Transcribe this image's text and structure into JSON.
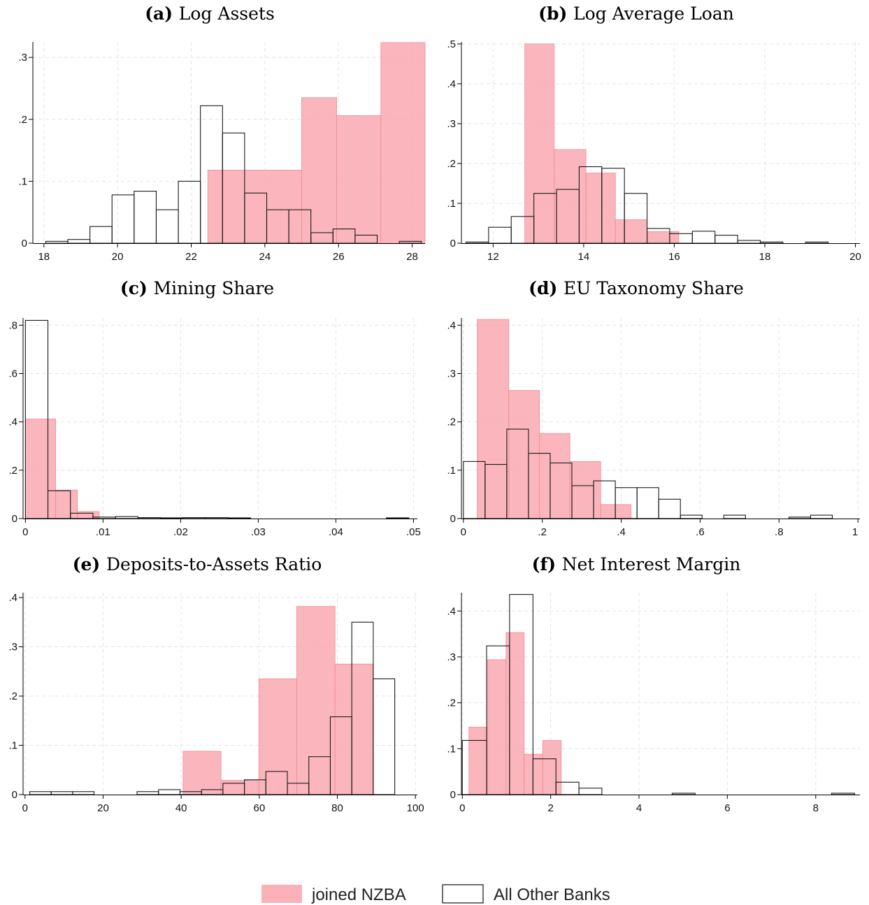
{
  "legend": {
    "items": [
      {
        "label": "joined NZBA",
        "color": "#f9a9b0",
        "style": "filled"
      },
      {
        "label": "All Other Banks",
        "color": "#1a1a1a",
        "style": "outline"
      }
    ]
  },
  "chart_data": [
    {
      "id": "a",
      "type": "histogram",
      "title_prefix": "(a)",
      "title": "Log Assets",
      "xlim": [
        17.7,
        28.35
      ],
      "ylim": [
        0,
        0.325
      ],
      "xticks": [
        18,
        20,
        22,
        24,
        26,
        28
      ],
      "xtick_labels": [
        "18",
        "20",
        "22",
        "24",
        "26",
        "28"
      ],
      "yticks": [
        0,
        0.1,
        0.2,
        0.3
      ],
      "ytick_labels": [
        "0",
        ".1",
        ".2",
        ".3"
      ],
      "series": [
        {
          "name": "joined NZBA",
          "bins": [
            {
              "x0": 22.45,
              "x1": 25.0,
              "y": 0.118
            },
            {
              "x0": 25.0,
              "x1": 25.95,
              "y": 0.235
            },
            {
              "x0": 25.95,
              "x1": 27.15,
              "y": 0.206
            },
            {
              "x0": 27.15,
              "x1": 28.35,
              "y": 0.324
            }
          ]
        },
        {
          "name": "All Other Banks",
          "bins": [
            {
              "x0": 18.05,
              "x1": 18.65,
              "y": 0.003
            },
            {
              "x0": 18.65,
              "x1": 19.25,
              "y": 0.006
            },
            {
              "x0": 19.25,
              "x1": 19.85,
              "y": 0.027
            },
            {
              "x0": 19.85,
              "x1": 20.45,
              "y": 0.078
            },
            {
              "x0": 20.45,
              "x1": 21.05,
              "y": 0.084
            },
            {
              "x0": 21.05,
              "x1": 21.65,
              "y": 0.054
            },
            {
              "x0": 21.65,
              "x1": 22.25,
              "y": 0.1
            },
            {
              "x0": 22.25,
              "x1": 22.85,
              "y": 0.222
            },
            {
              "x0": 22.85,
              "x1": 23.45,
              "y": 0.178
            },
            {
              "x0": 23.45,
              "x1": 24.05,
              "y": 0.081
            },
            {
              "x0": 24.05,
              "x1": 24.65,
              "y": 0.054
            },
            {
              "x0": 24.65,
              "x1": 25.25,
              "y": 0.054
            },
            {
              "x0": 25.25,
              "x1": 25.85,
              "y": 0.017
            },
            {
              "x0": 25.85,
              "x1": 26.45,
              "y": 0.023
            },
            {
              "x0": 26.45,
              "x1": 27.05,
              "y": 0.013
            },
            {
              "x0": 27.65,
              "x1": 28.25,
              "y": 0.003
            }
          ]
        }
      ]
    },
    {
      "id": "b",
      "type": "histogram",
      "title_prefix": "(b)",
      "title": "Log Average Loan",
      "xlim": [
        11.3,
        20.1
      ],
      "ylim": [
        0,
        0.505
      ],
      "xticks": [
        12,
        14,
        16,
        18,
        20
      ],
      "xtick_labels": [
        "12",
        "14",
        "16",
        "18",
        "20"
      ],
      "yticks": [
        0,
        0.1,
        0.2,
        0.3,
        0.4,
        0.5
      ],
      "ytick_labels": [
        "0",
        ".1",
        ".2",
        ".3",
        ".4",
        ".5"
      ],
      "series": [
        {
          "name": "joined NZBA",
          "bins": [
            {
              "x0": 12.7,
              "x1": 13.35,
              "y": 0.5
            },
            {
              "x0": 13.35,
              "x1": 14.05,
              "y": 0.235
            },
            {
              "x0": 14.05,
              "x1": 14.7,
              "y": 0.176
            },
            {
              "x0": 14.7,
              "x1": 15.4,
              "y": 0.059
            },
            {
              "x0": 15.4,
              "x1": 16.1,
              "y": 0.029
            }
          ]
        },
        {
          "name": "All Other Banks",
          "bins": [
            {
              "x0": 11.4,
              "x1": 11.9,
              "y": 0.003
            },
            {
              "x0": 11.9,
              "x1": 12.4,
              "y": 0.04
            },
            {
              "x0": 12.4,
              "x1": 12.9,
              "y": 0.067
            },
            {
              "x0": 12.9,
              "x1": 13.4,
              "y": 0.125
            },
            {
              "x0": 13.4,
              "x1": 13.9,
              "y": 0.135
            },
            {
              "x0": 13.9,
              "x1": 14.4,
              "y": 0.192
            },
            {
              "x0": 14.4,
              "x1": 14.9,
              "y": 0.188
            },
            {
              "x0": 14.9,
              "x1": 15.4,
              "y": 0.125
            },
            {
              "x0": 15.4,
              "x1": 15.9,
              "y": 0.037
            },
            {
              "x0": 15.9,
              "x1": 16.4,
              "y": 0.024
            },
            {
              "x0": 16.4,
              "x1": 16.9,
              "y": 0.03
            },
            {
              "x0": 16.9,
              "x1": 17.4,
              "y": 0.02
            },
            {
              "x0": 17.4,
              "x1": 17.9,
              "y": 0.007
            },
            {
              "x0": 17.9,
              "x1": 18.4,
              "y": 0.003
            },
            {
              "x0": 18.9,
              "x1": 19.4,
              "y": 0.003
            }
          ]
        }
      ]
    },
    {
      "id": "c",
      "type": "histogram",
      "title_prefix": "(c)",
      "title": "Mining Share",
      "xlim": [
        -0.0003,
        0.0505
      ],
      "ylim": [
        0,
        0.83
      ],
      "xticks": [
        0,
        0.01,
        0.02,
        0.03,
        0.04,
        0.05
      ],
      "xtick_labels": [
        "0",
        ".01",
        ".02",
        ".03",
        ".04",
        ".05"
      ],
      "yticks": [
        0,
        0.2,
        0.4,
        0.6,
        0.8
      ],
      "ytick_labels": [
        "0",
        ".2",
        ".4",
        ".6",
        ".8"
      ],
      "series": [
        {
          "name": "joined NZBA",
          "bins": [
            {
              "x0": 0.0,
              "x1": 0.0039,
              "y": 0.412
            },
            {
              "x0": 0.0039,
              "x1": 0.0067,
              "y": 0.118
            },
            {
              "x0": 0.0067,
              "x1": 0.0095,
              "y": 0.029
            }
          ]
        },
        {
          "name": "All Other Banks",
          "bins": [
            {
              "x0": 0.0,
              "x1": 0.0029,
              "y": 0.82
            },
            {
              "x0": 0.0029,
              "x1": 0.0058,
              "y": 0.115
            },
            {
              "x0": 0.0058,
              "x1": 0.0087,
              "y": 0.022
            },
            {
              "x0": 0.0087,
              "x1": 0.0116,
              "y": 0.006
            },
            {
              "x0": 0.0116,
              "x1": 0.0145,
              "y": 0.008
            },
            {
              "x0": 0.0145,
              "x1": 0.0174,
              "y": 0.004
            },
            {
              "x0": 0.0174,
              "x1": 0.0203,
              "y": 0.003
            },
            {
              "x0": 0.0203,
              "x1": 0.0232,
              "y": 0.004
            },
            {
              "x0": 0.0232,
              "x1": 0.0261,
              "y": 0.004
            },
            {
              "x0": 0.0261,
              "x1": 0.029,
              "y": 0.002
            },
            {
              "x0": 0.0465,
              "x1": 0.0494,
              "y": 0.003
            }
          ]
        }
      ]
    },
    {
      "id": "d",
      "type": "histogram",
      "title_prefix": "(d)",
      "title": "EU Taxonomy Share",
      "xlim": [
        -0.005,
        1.005
      ],
      "ylim": [
        0,
        0.415
      ],
      "xticks": [
        0,
        0.2,
        0.4,
        0.6,
        0.8,
        1
      ],
      "xtick_labels": [
        "0",
        ".2",
        ".4",
        ".6",
        ".8",
        "1"
      ],
      "yticks": [
        0,
        0.1,
        0.2,
        0.3,
        0.4
      ],
      "ytick_labels": [
        "0",
        ".1",
        ".2",
        ".3",
        ".4"
      ],
      "series": [
        {
          "name": "joined NZBA",
          "bins": [
            {
              "x0": 0.035,
              "x1": 0.115,
              "y": 0.412
            },
            {
              "x0": 0.115,
              "x1": 0.193,
              "y": 0.265
            },
            {
              "x0": 0.193,
              "x1": 0.27,
              "y": 0.176
            },
            {
              "x0": 0.27,
              "x1": 0.348,
              "y": 0.118
            },
            {
              "x0": 0.348,
              "x1": 0.425,
              "y": 0.029
            }
          ]
        },
        {
          "name": "All Other Banks",
          "bins": [
            {
              "x0": 0.0,
              "x1": 0.055,
              "y": 0.118
            },
            {
              "x0": 0.055,
              "x1": 0.11,
              "y": 0.112
            },
            {
              "x0": 0.11,
              "x1": 0.165,
              "y": 0.185
            },
            {
              "x0": 0.165,
              "x1": 0.22,
              "y": 0.135
            },
            {
              "x0": 0.22,
              "x1": 0.275,
              "y": 0.115
            },
            {
              "x0": 0.275,
              "x1": 0.33,
              "y": 0.068
            },
            {
              "x0": 0.33,
              "x1": 0.385,
              "y": 0.078
            },
            {
              "x0": 0.385,
              "x1": 0.44,
              "y": 0.064
            },
            {
              "x0": 0.44,
              "x1": 0.495,
              "y": 0.064
            },
            {
              "x0": 0.495,
              "x1": 0.55,
              "y": 0.04
            },
            {
              "x0": 0.55,
              "x1": 0.605,
              "y": 0.007
            },
            {
              "x0": 0.66,
              "x1": 0.715,
              "y": 0.007
            },
            {
              "x0": 0.825,
              "x1": 0.88,
              "y": 0.003
            },
            {
              "x0": 0.88,
              "x1": 0.935,
              "y": 0.007
            }
          ]
        }
      ]
    },
    {
      "id": "e",
      "type": "histogram",
      "title_prefix": "(e)",
      "title": "Deposits-to-Assets Ratio",
      "xlim": [
        -0.5,
        100.5
      ],
      "ylim": [
        0,
        0.41
      ],
      "xticks": [
        0,
        20,
        40,
        60,
        80,
        100
      ],
      "xtick_labels": [
        "0",
        "20",
        "40",
        "60",
        "80",
        "100"
      ],
      "yticks": [
        0,
        0.1,
        0.2,
        0.3,
        0.4
      ],
      "ytick_labels": [
        "0",
        ".1",
        ".2",
        ".3",
        ".4"
      ],
      "series": [
        {
          "name": "joined NZBA",
          "bins": [
            {
              "x0": 40.5,
              "x1": 50.2,
              "y": 0.088
            },
            {
              "x0": 50.2,
              "x1": 59.9,
              "y": 0.029
            },
            {
              "x0": 59.9,
              "x1": 69.6,
              "y": 0.235
            },
            {
              "x0": 69.6,
              "x1": 79.4,
              "y": 0.382
            },
            {
              "x0": 79.4,
              "x1": 89.1,
              "y": 0.265
            }
          ]
        },
        {
          "name": "All Other Banks",
          "bins": [
            {
              "x0": 1.2,
              "x1": 6.7,
              "y": 0.006
            },
            {
              "x0": 6.7,
              "x1": 12.2,
              "y": 0.006
            },
            {
              "x0": 12.2,
              "x1": 17.7,
              "y": 0.006
            },
            {
              "x0": 28.7,
              "x1": 34.2,
              "y": 0.006
            },
            {
              "x0": 34.2,
              "x1": 39.7,
              "y": 0.01
            },
            {
              "x0": 39.7,
              "x1": 45.2,
              "y": 0.006
            },
            {
              "x0": 45.2,
              "x1": 50.7,
              "y": 0.01
            },
            {
              "x0": 50.7,
              "x1": 56.2,
              "y": 0.023
            },
            {
              "x0": 56.2,
              "x1": 61.7,
              "y": 0.03
            },
            {
              "x0": 61.7,
              "x1": 67.2,
              "y": 0.047
            },
            {
              "x0": 67.2,
              "x1": 72.7,
              "y": 0.023
            },
            {
              "x0": 72.7,
              "x1": 78.2,
              "y": 0.077
            },
            {
              "x0": 78.2,
              "x1": 83.7,
              "y": 0.158
            },
            {
              "x0": 83.7,
              "x1": 89.2,
              "y": 0.35
            },
            {
              "x0": 89.2,
              "x1": 94.7,
              "y": 0.235
            }
          ]
        }
      ]
    },
    {
      "id": "f",
      "type": "histogram",
      "title_prefix": "(f)",
      "title": "Net Interest Margin",
      "xlim": [
        -0.02,
        9.0
      ],
      "ylim": [
        0,
        0.44
      ],
      "xticks": [
        0,
        2,
        4,
        6,
        8
      ],
      "xtick_labels": [
        "0",
        "2",
        "4",
        "6",
        "8"
      ],
      "yticks": [
        0,
        0.1,
        0.2,
        0.3,
        0.4
      ],
      "ytick_labels": [
        "0",
        ".1",
        ".2",
        ".3",
        ".4"
      ],
      "series": [
        {
          "name": "joined NZBA",
          "bins": [
            {
              "x0": 0.15,
              "x1": 0.57,
              "y": 0.147
            },
            {
              "x0": 0.57,
              "x1": 0.99,
              "y": 0.294
            },
            {
              "x0": 0.99,
              "x1": 1.4,
              "y": 0.353
            },
            {
              "x0": 1.4,
              "x1": 1.82,
              "y": 0.088
            },
            {
              "x0": 1.82,
              "x1": 2.24,
              "y": 0.118
            }
          ]
        },
        {
          "name": "All Other Banks",
          "bins": [
            {
              "x0": 0.0,
              "x1": 0.55,
              "y": 0.118
            },
            {
              "x0": 0.55,
              "x1": 1.07,
              "y": 0.324
            },
            {
              "x0": 1.07,
              "x1": 1.6,
              "y": 0.436
            },
            {
              "x0": 1.6,
              "x1": 2.12,
              "y": 0.078
            },
            {
              "x0": 2.12,
              "x1": 2.64,
              "y": 0.027
            },
            {
              "x0": 2.64,
              "x1": 3.16,
              "y": 0.014
            },
            {
              "x0": 4.75,
              "x1": 5.27,
              "y": 0.003
            },
            {
              "x0": 8.36,
              "x1": 8.88,
              "y": 0.003
            }
          ]
        }
      ]
    }
  ]
}
